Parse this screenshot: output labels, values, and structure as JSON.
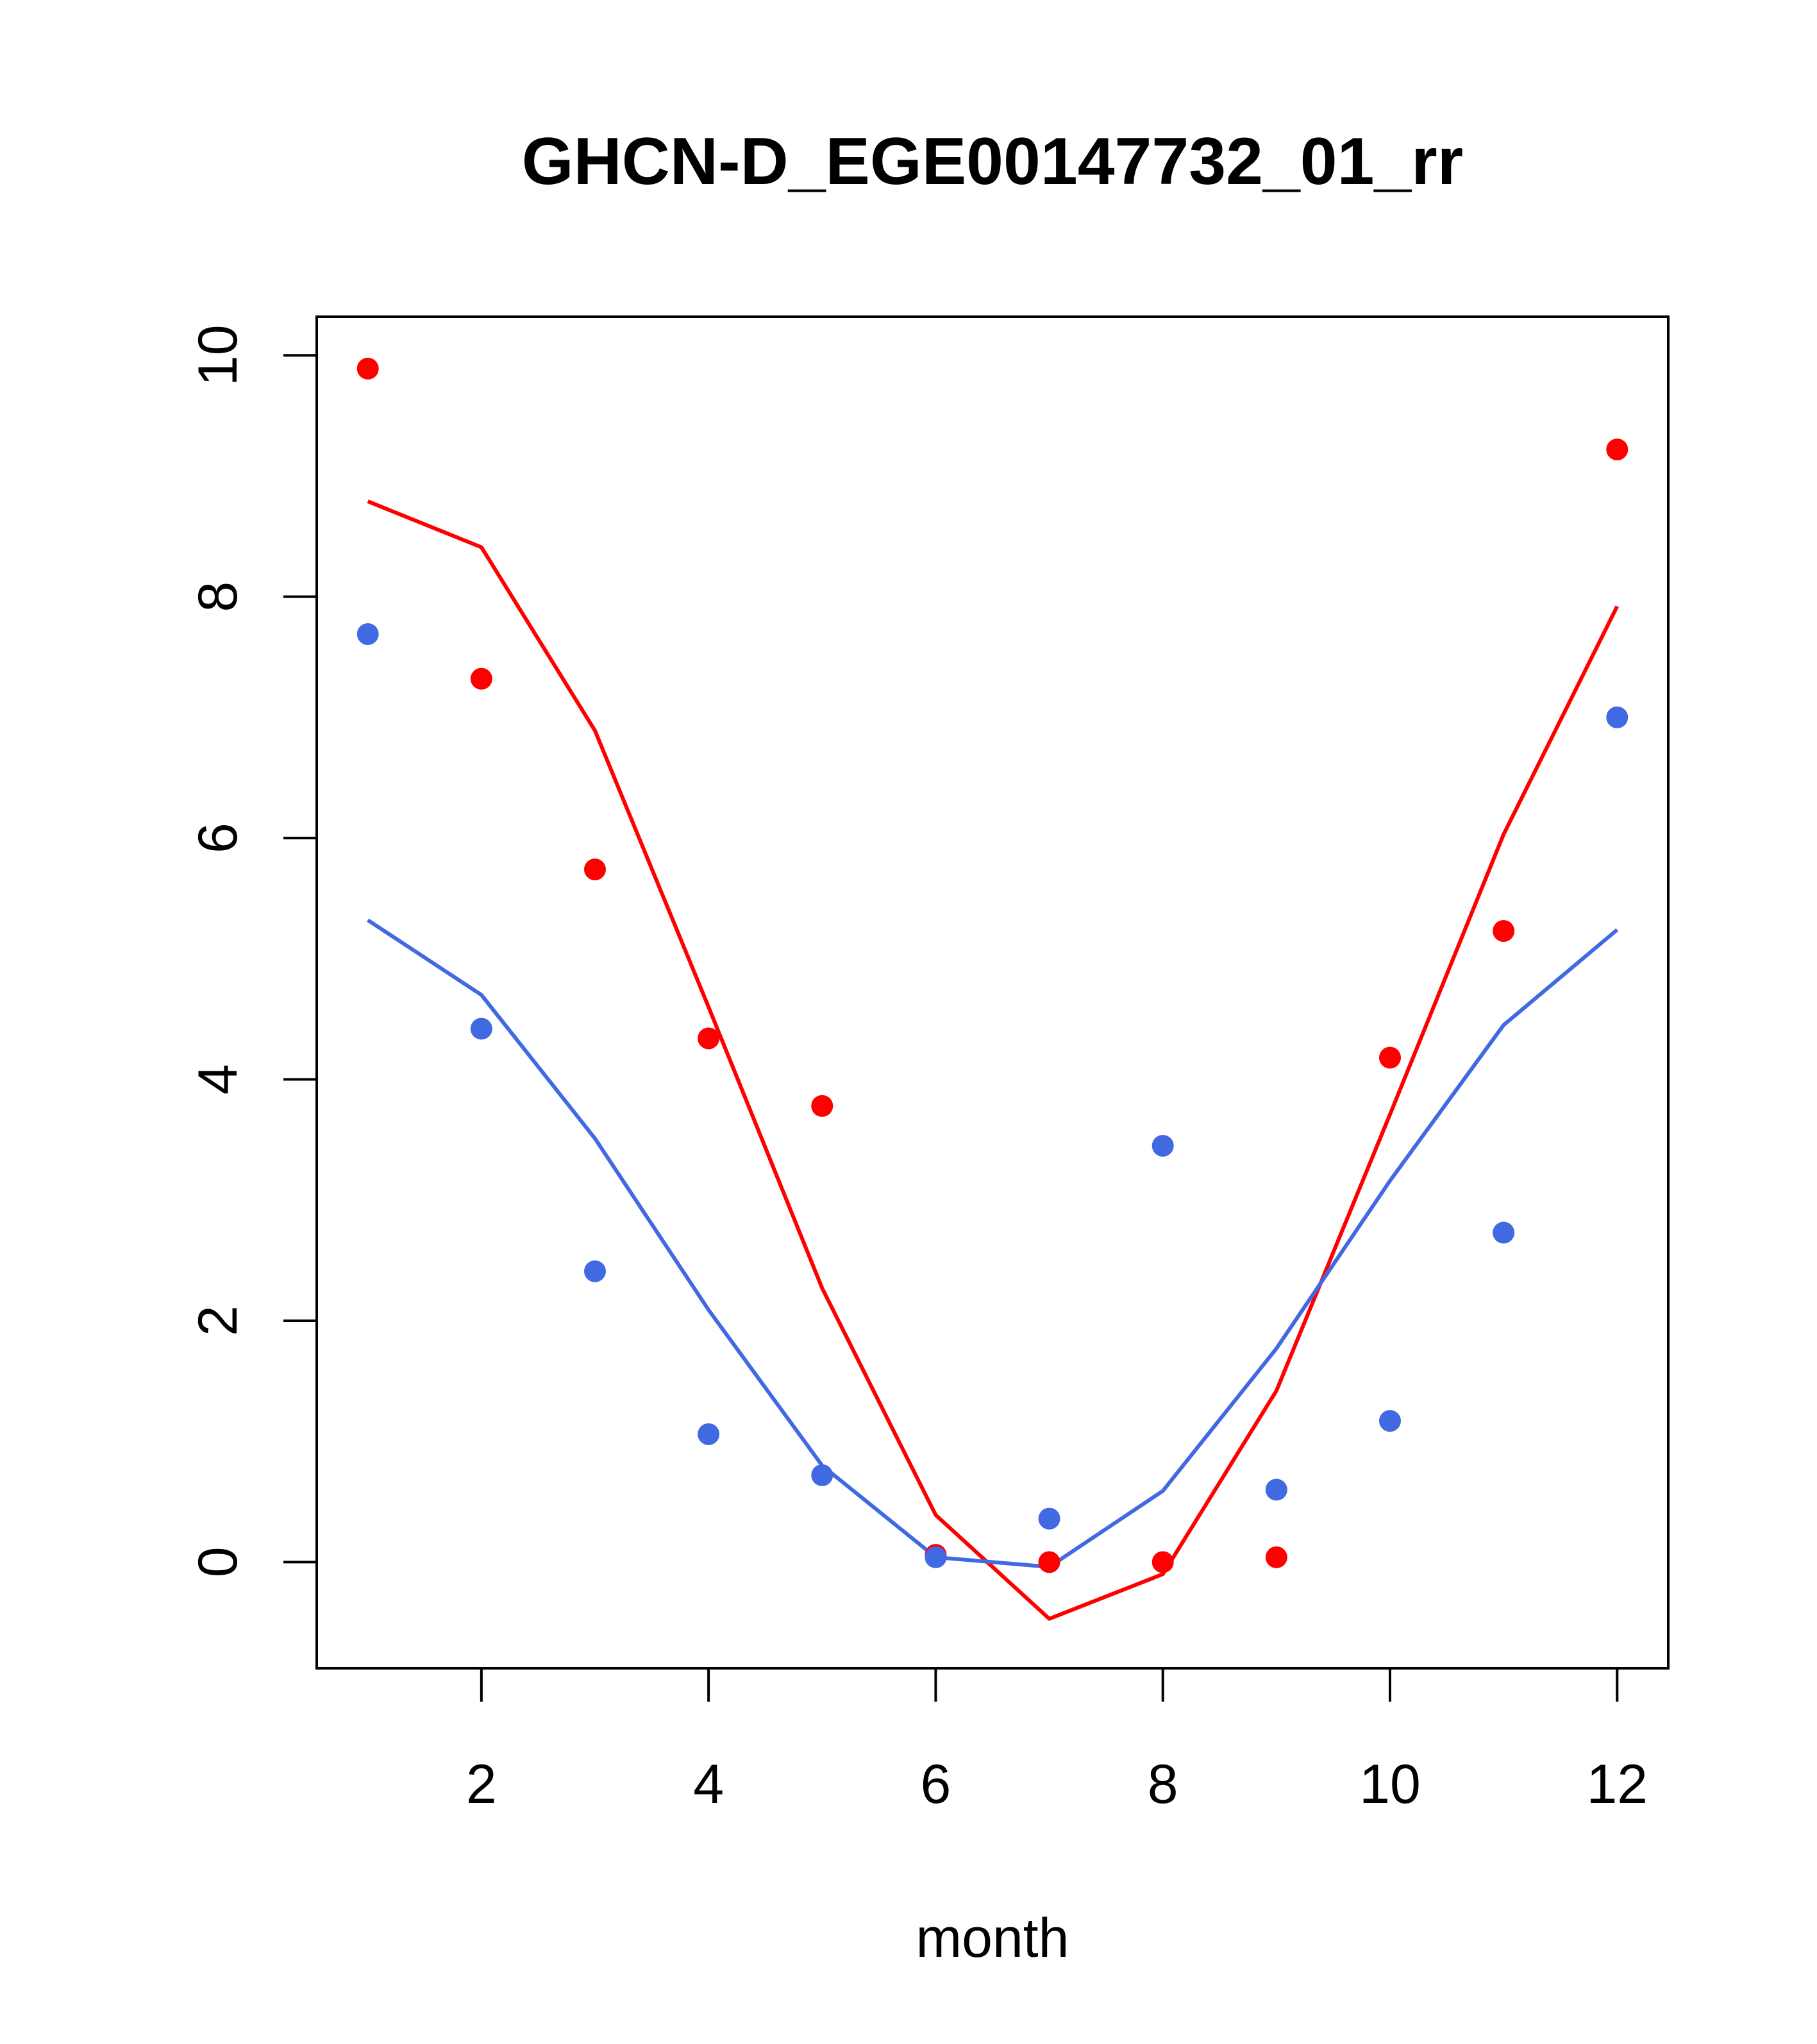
{
  "chart_data": {
    "type": "scatter",
    "title": "GHCN-D_EGE00147732_01_rr",
    "xlabel": "month",
    "ylabel": "",
    "xlim": [
      0.55,
      12.45
    ],
    "ylim": [
      -0.88,
      10.32
    ],
    "x_ticks": [
      2,
      4,
      6,
      8,
      10,
      12
    ],
    "y_ticks": [
      0,
      2,
      4,
      6,
      8,
      10
    ],
    "grid": false,
    "legend": "none",
    "x": [
      1,
      2,
      3,
      4,
      5,
      6,
      7,
      8,
      9,
      10,
      11,
      12
    ],
    "series": [
      {
        "color": "#ff0000",
        "points": [
          9.89,
          7.32,
          5.74,
          4.34,
          3.78,
          0.06,
          0.0,
          0.0,
          0.04,
          4.18,
          5.23,
          9.22
        ],
        "line": [
          8.79,
          8.41,
          6.89,
          4.6,
          2.27,
          0.39,
          -0.47,
          -0.1,
          1.42,
          3.71,
          6.03,
          7.92
        ]
      },
      {
        "color": "#4169e1",
        "points": [
          7.69,
          4.42,
          2.41,
          1.06,
          0.72,
          0.04,
          0.36,
          3.45,
          0.6,
          1.17,
          2.73,
          7.0
        ],
        "line": [
          5.32,
          4.7,
          3.51,
          2.09,
          0.8,
          0.04,
          -0.04,
          0.59,
          1.77,
          3.16,
          4.45,
          5.24
        ]
      }
    ]
  }
}
